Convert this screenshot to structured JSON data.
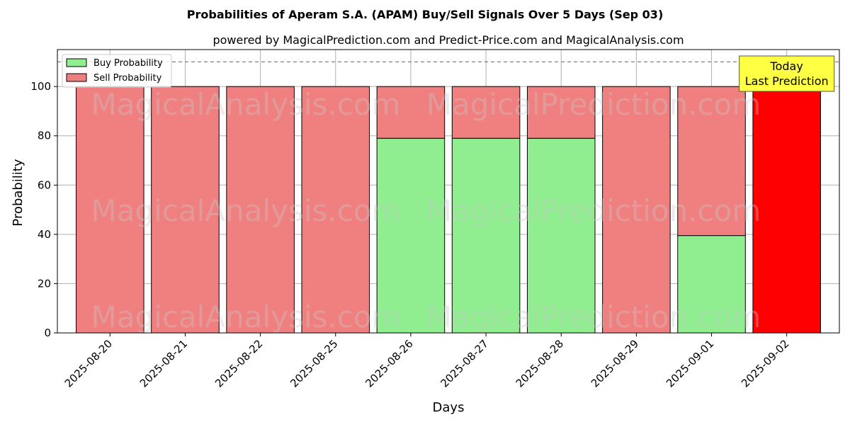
{
  "chart_data": {
    "type": "bar",
    "stacked": true,
    "title": "Probabilities of Aperam S.A. (APAM) Buy/Sell Signals Over 5 Days (Sep 03)",
    "subtitle": "powered by MagicalPrediction.com and Predict-Price.com and MagicalAnalysis.com",
    "xlabel": "Days",
    "ylabel": "Probability",
    "ylim": [
      0,
      115
    ],
    "yticks": [
      0,
      20,
      40,
      60,
      80,
      100
    ],
    "reference_line": 110,
    "grid": true,
    "legend_position": "top-left",
    "categories": [
      "2025-08-20",
      "2025-08-21",
      "2025-08-22",
      "2025-08-25",
      "2025-08-26",
      "2025-08-27",
      "2025-08-28",
      "2025-08-29",
      "2025-09-01",
      "2025-09-02"
    ],
    "series": [
      {
        "name": "Buy Probability",
        "color": "#90ee90",
        "values": [
          0,
          0,
          0,
          0,
          79,
          79,
          79,
          0,
          39.5,
          0
        ]
      },
      {
        "name": "Sell Probability",
        "color": "#f08080",
        "values": [
          100,
          100,
          100,
          100,
          21,
          21,
          21,
          100,
          60.5,
          100
        ]
      }
    ],
    "highlight": {
      "index": 9,
      "color": "#ff0000"
    },
    "annotation": {
      "line1": "Today",
      "line2": "Last Prediction",
      "background": "#ffff44"
    },
    "watermarks": [
      "MagicalAnalysis.com",
      "MagicalPrediction.com"
    ]
  }
}
